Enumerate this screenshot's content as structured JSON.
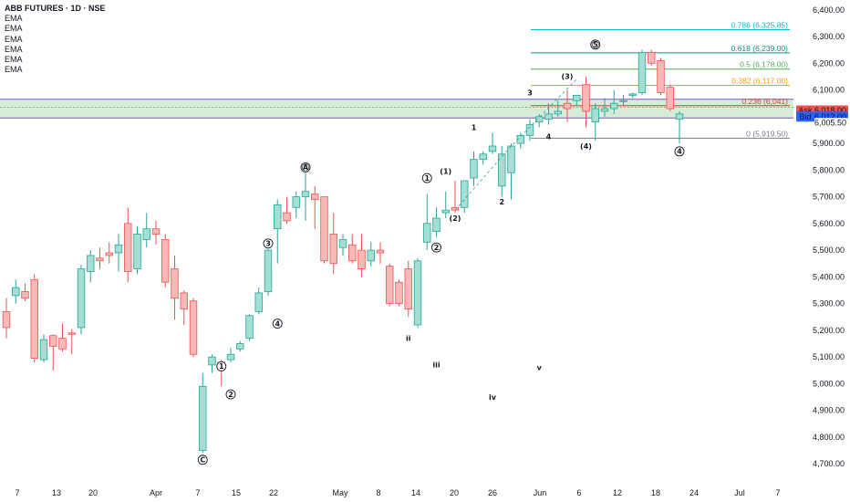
{
  "header": {
    "title": "ABB FUTURES · 1D · NSE",
    "indicators": [
      "EMA",
      "EMA",
      "EMA",
      "EMA",
      "EMA",
      "EMA"
    ]
  },
  "colors": {
    "up": "#26a69a",
    "up_fill": "#a3dfd3",
    "down": "#ef5350",
    "down_fill": "#f7b9b8",
    "zone_fill": "#c8e6c9",
    "zone_border": "#7e57c2",
    "ask": "#ef5350",
    "bid": "#2962ff",
    "last": "#ffffff"
  },
  "chart_data": {
    "type": "candlestick",
    "y_ticks": [
      "6,400.00",
      "6,300.00",
      "6,200.00",
      "6,100.00",
      "6,000.00",
      "5,900.00",
      "5,800.00",
      "5,700.00",
      "5,600.00",
      "5,500.00",
      "5,400.00",
      "5,300.00",
      "5,200.00",
      "5,100.00",
      "5,000.00",
      "4,900.00",
      "4,800.00",
      "4,700.00"
    ],
    "y_tick_values": [
      6400,
      6300,
      6200,
      6100,
      6000,
      5900,
      5800,
      5700,
      5600,
      5500,
      5400,
      5300,
      5200,
      5100,
      5000,
      4900,
      4800,
      4700
    ],
    "ylim": [
      4680,
      6430
    ],
    "x_ticks": [
      "7",
      "13",
      "20",
      "Apr",
      "7",
      "15",
      "22",
      "May",
      "8",
      "14",
      "20",
      "26",
      "Jun",
      "6",
      "12",
      "18",
      "24",
      "Jul",
      "7"
    ],
    "candles": [
      {
        "o": 5270,
        "h": 5320,
        "l": 5170,
        "c": 5210
      },
      {
        "o": 5330,
        "h": 5390,
        "l": 5300,
        "c": 5360
      },
      {
        "o": 5345,
        "h": 5375,
        "l": 5310,
        "c": 5320
      },
      {
        "o": 5390,
        "h": 5410,
        "l": 5080,
        "c": 5095
      },
      {
        "o": 5090,
        "h": 5185,
        "l": 5080,
        "c": 5165
      },
      {
        "o": 5180,
        "h": 5185,
        "l": 5050,
        "c": 5140
      },
      {
        "o": 5170,
        "h": 5225,
        "l": 5120,
        "c": 5130
      },
      {
        "o": 5190,
        "h": 5205,
        "l": 5110,
        "c": 5185
      },
      {
        "o": 5210,
        "h": 5445,
        "l": 5185,
        "c": 5430
      },
      {
        "o": 5420,
        "h": 5500,
        "l": 5380,
        "c": 5480
      },
      {
        "o": 5470,
        "h": 5510,
        "l": 5430,
        "c": 5460
      },
      {
        "o": 5490,
        "h": 5530,
        "l": 5450,
        "c": 5480
      },
      {
        "o": 5490,
        "h": 5560,
        "l": 5420,
        "c": 5520
      },
      {
        "o": 5600,
        "h": 5660,
        "l": 5380,
        "c": 5420
      },
      {
        "o": 5430,
        "h": 5590,
        "l": 5410,
        "c": 5560
      },
      {
        "o": 5540,
        "h": 5640,
        "l": 5510,
        "c": 5580
      },
      {
        "o": 5580,
        "h": 5610,
        "l": 5520,
        "c": 5560
      },
      {
        "o": 5540,
        "h": 5560,
        "l": 5360,
        "c": 5380
      },
      {
        "o": 5430,
        "h": 5480,
        "l": 5240,
        "c": 5320
      },
      {
        "o": 5340,
        "h": 5350,
        "l": 5220,
        "c": 5280
      },
      {
        "o": 5310,
        "h": 5320,
        "l": 5100,
        "c": 5110
      },
      {
        "o": 4750,
        "h": 5040,
        "l": 4740,
        "c": 4990
      },
      {
        "o": 5070,
        "h": 5110,
        "l": 5040,
        "c": 5100
      },
      {
        "o": 5080,
        "h": 5090,
        "l": 4990,
        "c": 5060
      },
      {
        "o": 5090,
        "h": 5135,
        "l": 5080,
        "c": 5110
      },
      {
        "o": 5130,
        "h": 5160,
        "l": 5120,
        "c": 5150
      },
      {
        "o": 5170,
        "h": 5260,
        "l": 5160,
        "c": 5255
      },
      {
        "o": 5270,
        "h": 5360,
        "l": 5260,
        "c": 5340
      },
      {
        "o": 5345,
        "h": 5505,
        "l": 5330,
        "c": 5500
      },
      {
        "o": 5580,
        "h": 5690,
        "l": 5450,
        "c": 5670
      },
      {
        "o": 5640,
        "h": 5700,
        "l": 5600,
        "c": 5610
      },
      {
        "o": 5660,
        "h": 5720,
        "l": 5620,
        "c": 5700
      },
      {
        "o": 5700,
        "h": 5790,
        "l": 5610,
        "c": 5720
      },
      {
        "o": 5710,
        "h": 5740,
        "l": 5580,
        "c": 5690
      },
      {
        "o": 5700,
        "h": 5700,
        "l": 5450,
        "c": 5460
      },
      {
        "o": 5560,
        "h": 5640,
        "l": 5410,
        "c": 5450
      },
      {
        "o": 5510,
        "h": 5560,
        "l": 5480,
        "c": 5540
      },
      {
        "o": 5520,
        "h": 5560,
        "l": 5450,
        "c": 5460
      },
      {
        "o": 5500,
        "h": 5560,
        "l": 5400,
        "c": 5430
      },
      {
        "o": 5460,
        "h": 5530,
        "l": 5440,
        "c": 5500
      },
      {
        "o": 5500,
        "h": 5530,
        "l": 5450,
        "c": 5490
      },
      {
        "o": 5440,
        "h": 5450,
        "l": 5290,
        "c": 5300
      },
      {
        "o": 5380,
        "h": 5390,
        "l": 5290,
        "c": 5300
      },
      {
        "o": 5430,
        "h": 5460,
        "l": 5250,
        "c": 5280
      },
      {
        "o": 5220,
        "h": 5470,
        "l": 5210,
        "c": 5460
      },
      {
        "o": 5530,
        "h": 5710,
        "l": 5500,
        "c": 5600
      },
      {
        "o": 5570,
        "h": 5660,
        "l": 5550,
        "c": 5620
      },
      {
        "o": 5640,
        "h": 5720,
        "l": 5620,
        "c": 5650
      },
      {
        "o": 5660,
        "h": 5760,
        "l": 5640,
        "c": 5650
      },
      {
        "o": 5660,
        "h": 5760,
        "l": 5640,
        "c": 5760
      },
      {
        "o": 5770,
        "h": 5870,
        "l": 5740,
        "c": 5840
      },
      {
        "o": 5840,
        "h": 5870,
        "l": 5820,
        "c": 5860
      },
      {
        "o": 5870,
        "h": 5940,
        "l": 5860,
        "c": 5890
      },
      {
        "o": 5740,
        "h": 5890,
        "l": 5700,
        "c": 5860
      },
      {
        "o": 5790,
        "h": 5900,
        "l": 5690,
        "c": 5890
      },
      {
        "o": 5900,
        "h": 5940,
        "l": 5880,
        "c": 5930
      },
      {
        "o": 5930,
        "h": 5990,
        "l": 5910,
        "c": 5970
      },
      {
        "o": 5980,
        "h": 6010,
        "l": 5960,
        "c": 6000
      },
      {
        "o": 5990,
        "h": 6050,
        "l": 5970,
        "c": 6010
      },
      {
        "o": 6010,
        "h": 6060,
        "l": 6000,
        "c": 6020
      },
      {
        "o": 6050,
        "h": 6100,
        "l": 5980,
        "c": 6030
      },
      {
        "o": 6060,
        "h": 6080,
        "l": 6040,
        "c": 6080
      },
      {
        "o": 6120,
        "h": 6150,
        "l": 5960,
        "c": 6020
      },
      {
        "o": 5980,
        "h": 6050,
        "l": 5910,
        "c": 6030
      },
      {
        "o": 6020,
        "h": 6070,
        "l": 6000,
        "c": 6030
      },
      {
        "o": 6030,
        "h": 6100,
        "l": 6010,
        "c": 6050
      },
      {
        "o": 6060,
        "h": 6080,
        "l": 6040,
        "c": 6060
      },
      {
        "o": 6080,
        "h": 6090,
        "l": 6070,
        "c": 6085
      },
      {
        "o": 6090,
        "h": 6250,
        "l": 6080,
        "c": 6240
      },
      {
        "o": 6240,
        "h": 6250,
        "l": 6190,
        "c": 6200
      },
      {
        "o": 6210,
        "h": 6220,
        "l": 6080,
        "c": 6090
      },
      {
        "o": 6110,
        "h": 6120,
        "l": 6020,
        "c": 6030
      },
      {
        "o": 5990,
        "h": 6020,
        "l": 5900,
        "c": 6010
      }
    ],
    "fib_levels": [
      {
        "label": "0.786 (6,325.85)",
        "value": 6325.85,
        "color": "#00bcd4"
      },
      {
        "label": "0.618 (6,239.00)",
        "value": 6239.0,
        "color": "#009688"
      },
      {
        "label": "0.5 (6,178.00)",
        "value": 6178.0,
        "color": "#4caf50"
      },
      {
        "label": "0.382 (6,117.00)",
        "value": 6117.0,
        "color": "#ff9800"
      },
      {
        "label": "0.236 (6,041)",
        "value": 6041.0,
        "color": "#e53935"
      },
      {
        "label": "0 (5,919.50)",
        "value": 5919.5,
        "color": "#787b86"
      }
    ],
    "zone": {
      "top": 6065,
      "bottom": 5995
    },
    "price_labels": [
      {
        "name": "Ask",
        "value_text": "6,018.00",
        "value": 6018
      },
      {
        "name": "Bid",
        "value_text": "6,012.00",
        "value": 6012
      },
      {
        "name": "",
        "value_text": "6,005.50",
        "value": 6005.5
      }
    ],
    "wave_labels": [
      {
        "text": "A",
        "i": 32,
        "v": 5810,
        "circle": true,
        "double": true
      },
      {
        "text": "C",
        "i": 21,
        "v": 4715,
        "circle": true
      },
      {
        "text": "1",
        "i": 23,
        "v": 5065,
        "circle": true
      },
      {
        "text": "2",
        "i": 24,
        "v": 4960,
        "circle": true
      },
      {
        "text": "3",
        "i": 28,
        "v": 5525,
        "circle": true
      },
      {
        "text": "4",
        "i": 29,
        "v": 5225,
        "circle": true
      },
      {
        "text": "1",
        "i": 45,
        "v": 5770,
        "circle": true
      },
      {
        "text": "2",
        "i": 46,
        "v": 5510,
        "circle": true
      },
      {
        "text": "(1)",
        "i": 47,
        "v": 5795,
        "circle": false
      },
      {
        "text": "(2)",
        "i": 48,
        "v": 5620,
        "circle": false
      },
      {
        "text": "1",
        "i": 50,
        "v": 5960,
        "circle": false
      },
      {
        "text": "2",
        "i": 53,
        "v": 5680,
        "circle": false
      },
      {
        "text": "3",
        "i": 56,
        "v": 6090,
        "circle": false
      },
      {
        "text": "4",
        "i": 58,
        "v": 5925,
        "circle": false
      },
      {
        "text": "(3)",
        "i": 60,
        "v": 6150,
        "circle": false
      },
      {
        "text": "(4)",
        "i": 62,
        "v": 5890,
        "circle": false
      },
      {
        "text": "5",
        "i": 63,
        "v": 6270,
        "circle": true,
        "double": true
      },
      {
        "text": "4",
        "i": 72,
        "v": 5870,
        "circle": true
      },
      {
        "text": "ii",
        "i": 43,
        "v": 5170,
        "circle": false,
        "big": true
      },
      {
        "text": "iii",
        "i": 46,
        "v": 5070,
        "circle": false,
        "big": true
      },
      {
        "text": "iv",
        "i": 52,
        "v": 4950,
        "circle": false,
        "big": true
      },
      {
        "text": "v",
        "i": 57,
        "v": 5060,
        "circle": false,
        "big": true
      }
    ]
  }
}
